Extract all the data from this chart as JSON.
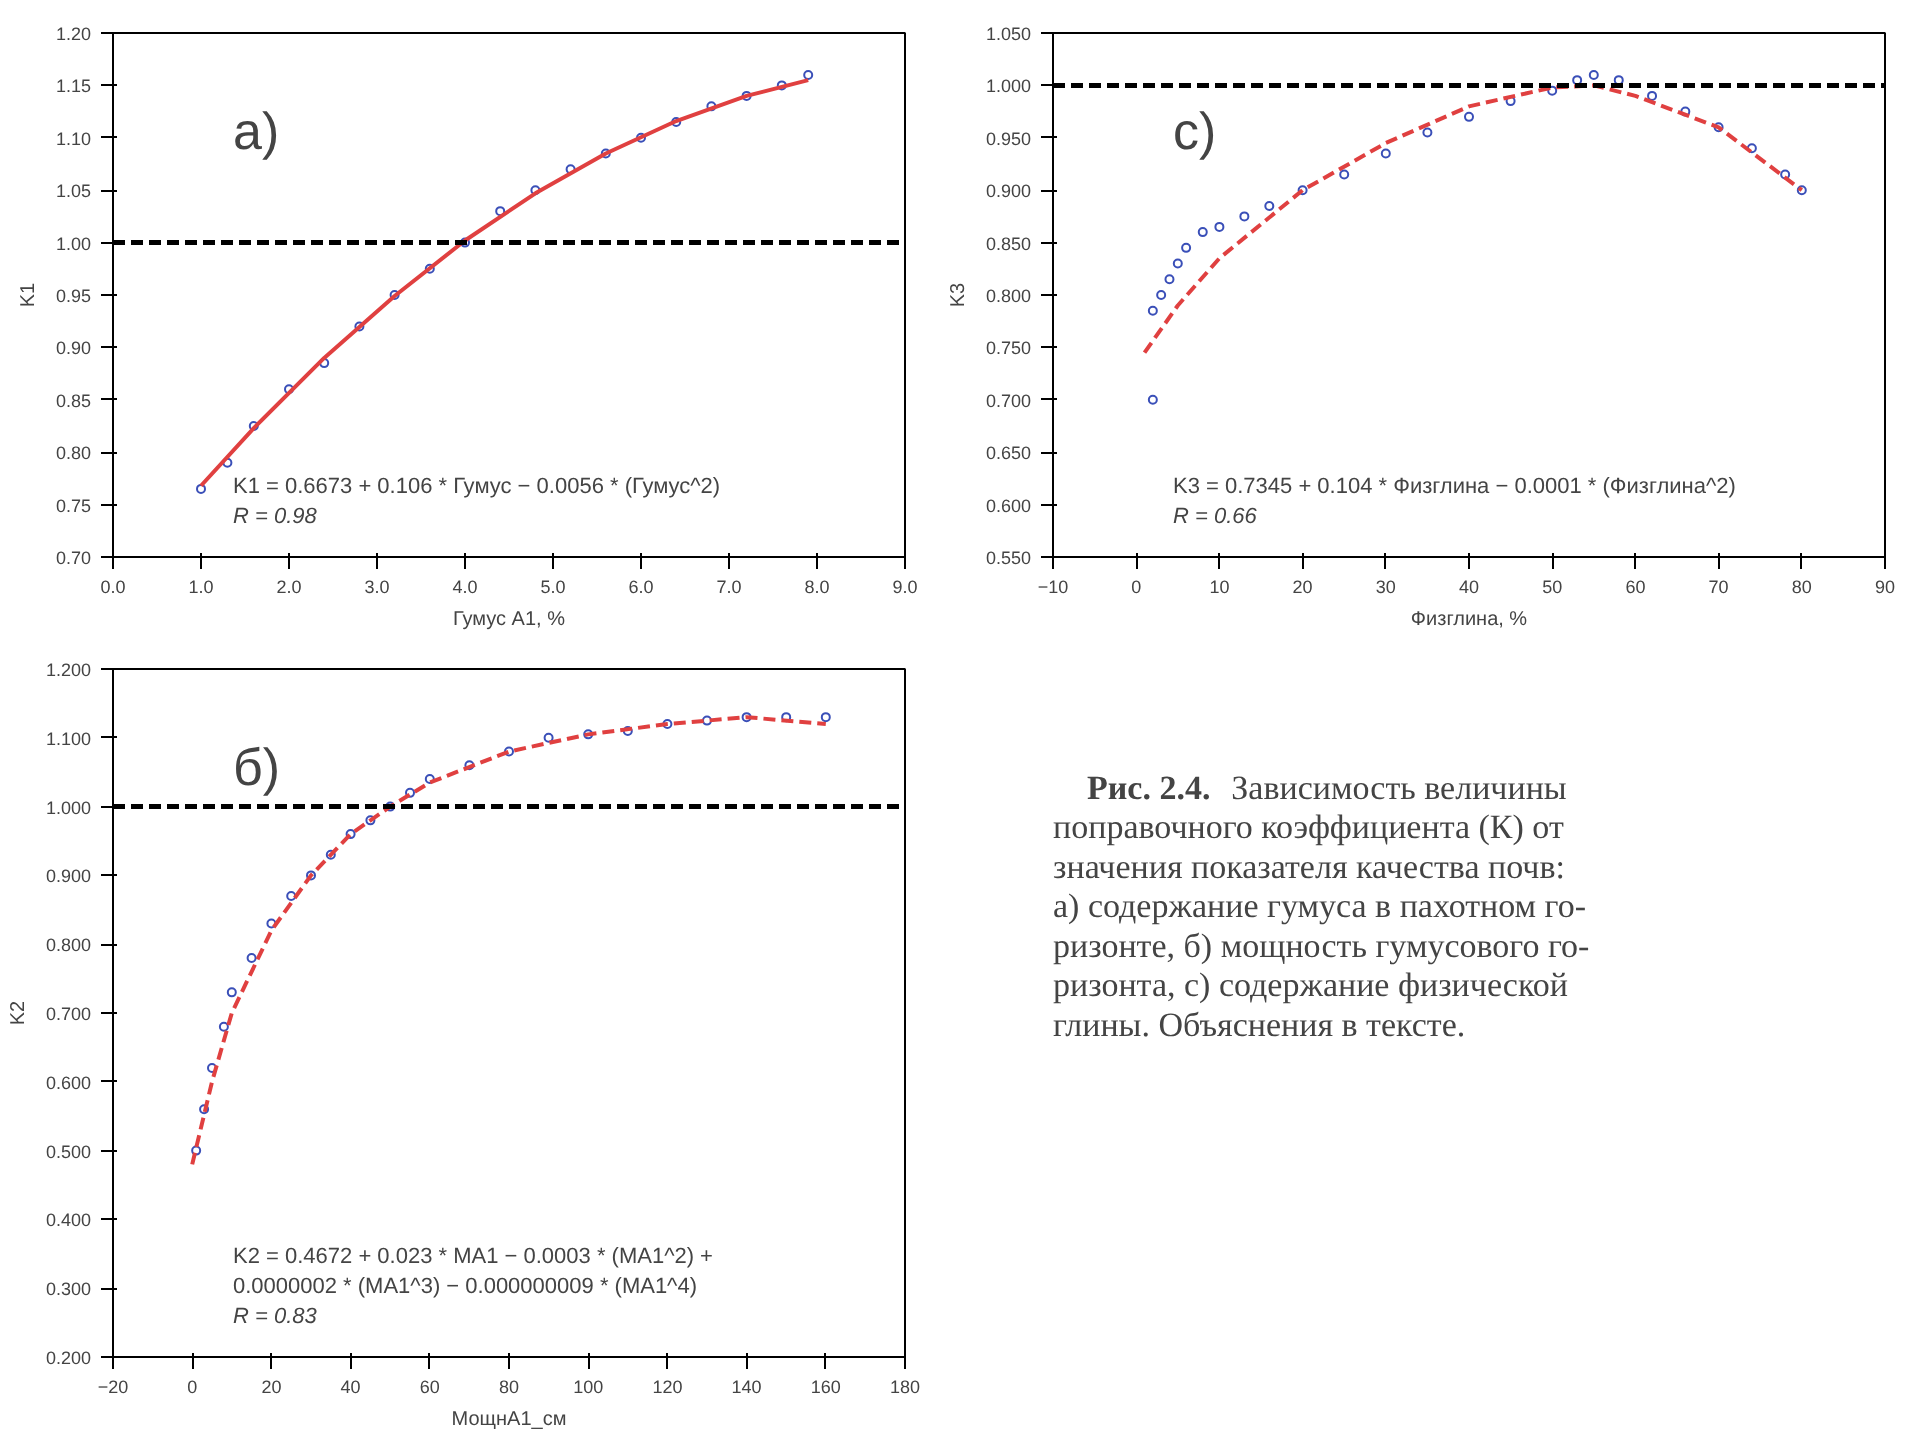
{
  "chart_data": [
    {
      "type": "scatter",
      "title": "а)",
      "xlabel": "Гумус А1, %",
      "ylabel": "K1",
      "xlim": [
        0,
        9
      ],
      "ylim": [
        0.7,
        1.2
      ],
      "xticks": [
        {
          "value": 0,
          "label": "0.0"
        },
        {
          "value": 1,
          "label": "1.0"
        },
        {
          "value": 2,
          "label": "2.0"
        },
        {
          "value": 3,
          "label": "3.0"
        },
        {
          "value": 4,
          "label": "4.0"
        },
        {
          "value": 5,
          "label": "5.0"
        },
        {
          "value": 6,
          "label": "6.0"
        },
        {
          "value": 7,
          "label": "7.0"
        },
        {
          "value": 8,
          "label": "8.0"
        },
        {
          "value": 9,
          "label": "9.0"
        }
      ],
      "yticks": [
        {
          "value": 0.7,
          "label": "0.70"
        },
        {
          "value": 0.75,
          "label": "0.75"
        },
        {
          "value": 0.8,
          "label": "0.80"
        },
        {
          "value": 0.85,
          "label": "0.85"
        },
        {
          "value": 0.9,
          "label": "0.90"
        },
        {
          "value": 0.95,
          "label": "0.95"
        },
        {
          "value": 1.0,
          "label": "1.00"
        },
        {
          "value": 1.05,
          "label": "1.05"
        },
        {
          "value": 1.1,
          "label": "1.10"
        },
        {
          "value": 1.15,
          "label": "1.15"
        },
        {
          "value": 1.2,
          "label": "1.20"
        }
      ],
      "series": [
        {
          "type": "scatter",
          "marker": "circle",
          "color": "#3a4fb8",
          "x": [
            1.0,
            1.3,
            1.6,
            2.0,
            2.4,
            2.8,
            3.2,
            3.6,
            4.0,
            4.4,
            4.8,
            5.2,
            5.6,
            6.0,
            6.4,
            6.8,
            7.2,
            7.6,
            7.9
          ],
          "values": [
            0.765,
            0.79,
            0.825,
            0.86,
            0.885,
            0.92,
            0.95,
            0.975,
            1.0,
            1.03,
            1.05,
            1.07,
            1.085,
            1.1,
            1.115,
            1.13,
            1.14,
            1.15,
            1.16
          ]
        },
        {
          "type": "line",
          "line_style": "solid",
          "color": "#e04040",
          "x": [
            1.0,
            1.6,
            2.4,
            3.2,
            4.0,
            4.8,
            5.6,
            6.4,
            7.2,
            7.9
          ],
          "values": [
            0.768,
            0.823,
            0.89,
            0.949,
            1.002,
            1.047,
            1.085,
            1.116,
            1.14,
            1.155
          ]
        }
      ],
      "ref_lines": [
        {
          "axis": "y",
          "value": 1.0,
          "label": null,
          "color": "#000000",
          "line_style": "dashed"
        }
      ],
      "annotations": [
        "K1 = 0.6673 + 0.106 * Гумус − 0.0056 * (Гумус^2)",
        "R = 0.98"
      ]
    },
    {
      "type": "scatter",
      "title": "с)",
      "xlabel": "Физглина, %",
      "ylabel": "K3",
      "xlim": [
        -10,
        90
      ],
      "ylim": [
        0.55,
        1.05
      ],
      "xticks": [
        -10,
        0,
        10,
        20,
        30,
        40,
        50,
        60,
        70,
        80,
        90
      ],
      "yticks": [
        {
          "value": 0.55,
          "label": "0.550"
        },
        {
          "value": 0.6,
          "label": "0.600"
        },
        {
          "value": 0.65,
          "label": "0.650"
        },
        {
          "value": 0.7,
          "label": "0.700"
        },
        {
          "value": 0.75,
          "label": "0.750"
        },
        {
          "value": 0.8,
          "label": "0.800"
        },
        {
          "value": 0.85,
          "label": "0.850"
        },
        {
          "value": 0.9,
          "label": "0.900"
        },
        {
          "value": 0.95,
          "label": "0.950"
        },
        {
          "value": 1.0,
          "label": "1.000"
        },
        {
          "value": 1.05,
          "label": "1.050"
        }
      ],
      "series": [
        {
          "type": "scatter",
          "marker": "circle",
          "color": "#3a4fb8",
          "x": [
            2,
            2,
            3,
            4,
            5,
            6,
            8,
            10,
            13,
            16,
            20,
            25,
            30,
            35,
            40,
            45,
            50,
            53,
            55,
            58,
            62,
            66,
            70,
            74,
            78,
            80
          ],
          "values": [
            0.7,
            0.785,
            0.8,
            0.815,
            0.83,
            0.845,
            0.86,
            0.865,
            0.875,
            0.885,
            0.9,
            0.915,
            0.935,
            0.955,
            0.97,
            0.985,
            0.995,
            1.005,
            1.01,
            1.005,
            0.99,
            0.975,
            0.96,
            0.94,
            0.915,
            0.9
          ]
        },
        {
          "type": "line",
          "line_style": "dashed",
          "color": "#e04040",
          "x": [
            1,
            5,
            10,
            20,
            30,
            40,
            50,
            55,
            60,
            70,
            80
          ],
          "values": [
            0.745,
            0.79,
            0.835,
            0.9,
            0.945,
            0.98,
            0.998,
            1.0,
            0.99,
            0.96,
            0.9
          ]
        }
      ],
      "ref_lines": [
        {
          "axis": "y",
          "value": 1.0,
          "label": null,
          "color": "#000000",
          "line_style": "dashed"
        }
      ],
      "annotations": [
        "K3 = 0.7345 + 0.104 * Физглина − 0.0001 * (Физглина^2)",
        "R = 0.66"
      ]
    },
    {
      "type": "scatter",
      "title": "б)",
      "xlabel": "МощнА1_см",
      "ylabel": "K2",
      "xlim": [
        -20,
        180
      ],
      "ylim": [
        0.2,
        1.2
      ],
      "xticks": [
        -20,
        0,
        20,
        40,
        60,
        80,
        100,
        120,
        140,
        160,
        180
      ],
      "yticks": [
        {
          "value": 0.2,
          "label": "0.200"
        },
        {
          "value": 0.3,
          "label": "0.300"
        },
        {
          "value": 0.4,
          "label": "0.400"
        },
        {
          "value": 0.5,
          "label": "0.500"
        },
        {
          "value": 0.6,
          "label": "0.600"
        },
        {
          "value": 0.7,
          "label": "0.700"
        },
        {
          "value": 0.8,
          "label": "0.800"
        },
        {
          "value": 0.9,
          "label": "0.900"
        },
        {
          "value": 1.0,
          "label": "1.000"
        },
        {
          "value": 1.1,
          "label": "1.100"
        },
        {
          "value": 1.2,
          "label": "1.200"
        }
      ],
      "series": [
        {
          "type": "scatter",
          "marker": "circle",
          "color": "#3a4fb8",
          "x": [
            1,
            3,
            5,
            8,
            10,
            15,
            20,
            25,
            30,
            35,
            40,
            45,
            50,
            55,
            60,
            70,
            80,
            90,
            100,
            110,
            120,
            130,
            140,
            150,
            160
          ],
          "values": [
            0.5,
            0.56,
            0.62,
            0.68,
            0.73,
            0.78,
            0.83,
            0.87,
            0.9,
            0.93,
            0.96,
            0.98,
            1.0,
            1.02,
            1.04,
            1.06,
            1.08,
            1.1,
            1.105,
            1.11,
            1.12,
            1.125,
            1.13,
            1.13,
            1.13
          ]
        },
        {
          "type": "line",
          "line_style": "dashed",
          "color": "#e04040",
          "x": [
            0,
            5,
            10,
            20,
            30,
            40,
            50,
            60,
            80,
            100,
            120,
            140,
            160
          ],
          "values": [
            0.48,
            0.6,
            0.7,
            0.82,
            0.9,
            0.96,
            1.0,
            1.035,
            1.08,
            1.105,
            1.12,
            1.13,
            1.12
          ]
        }
      ],
      "ref_lines": [
        {
          "axis": "y",
          "value": 1.0,
          "label": null,
          "color": "#000000",
          "line_style": "dashed"
        }
      ],
      "annotations": [
        "K2 = 0.4672 + 0.023 * MA1 − 0.0003 * (MA1^2) +",
        "0.0000002 * (MA1^3) − 0.000000009 * (MA1^4)",
        "R = 0.83"
      ]
    },
    {
      "type": "other",
      "title": "Рис. 2.4.",
      "annotations": [
        "Зависимость величины",
        "поправочного коэффициента (К) от",
        "значения показателя качества почв:",
        "а) содержание гумуса в пахотном го-",
        "ризонте, б) мощность гумусового го-",
        "ризонта, с) содержание физической",
        "глины. Объяснения в тексте."
      ]
    }
  ]
}
